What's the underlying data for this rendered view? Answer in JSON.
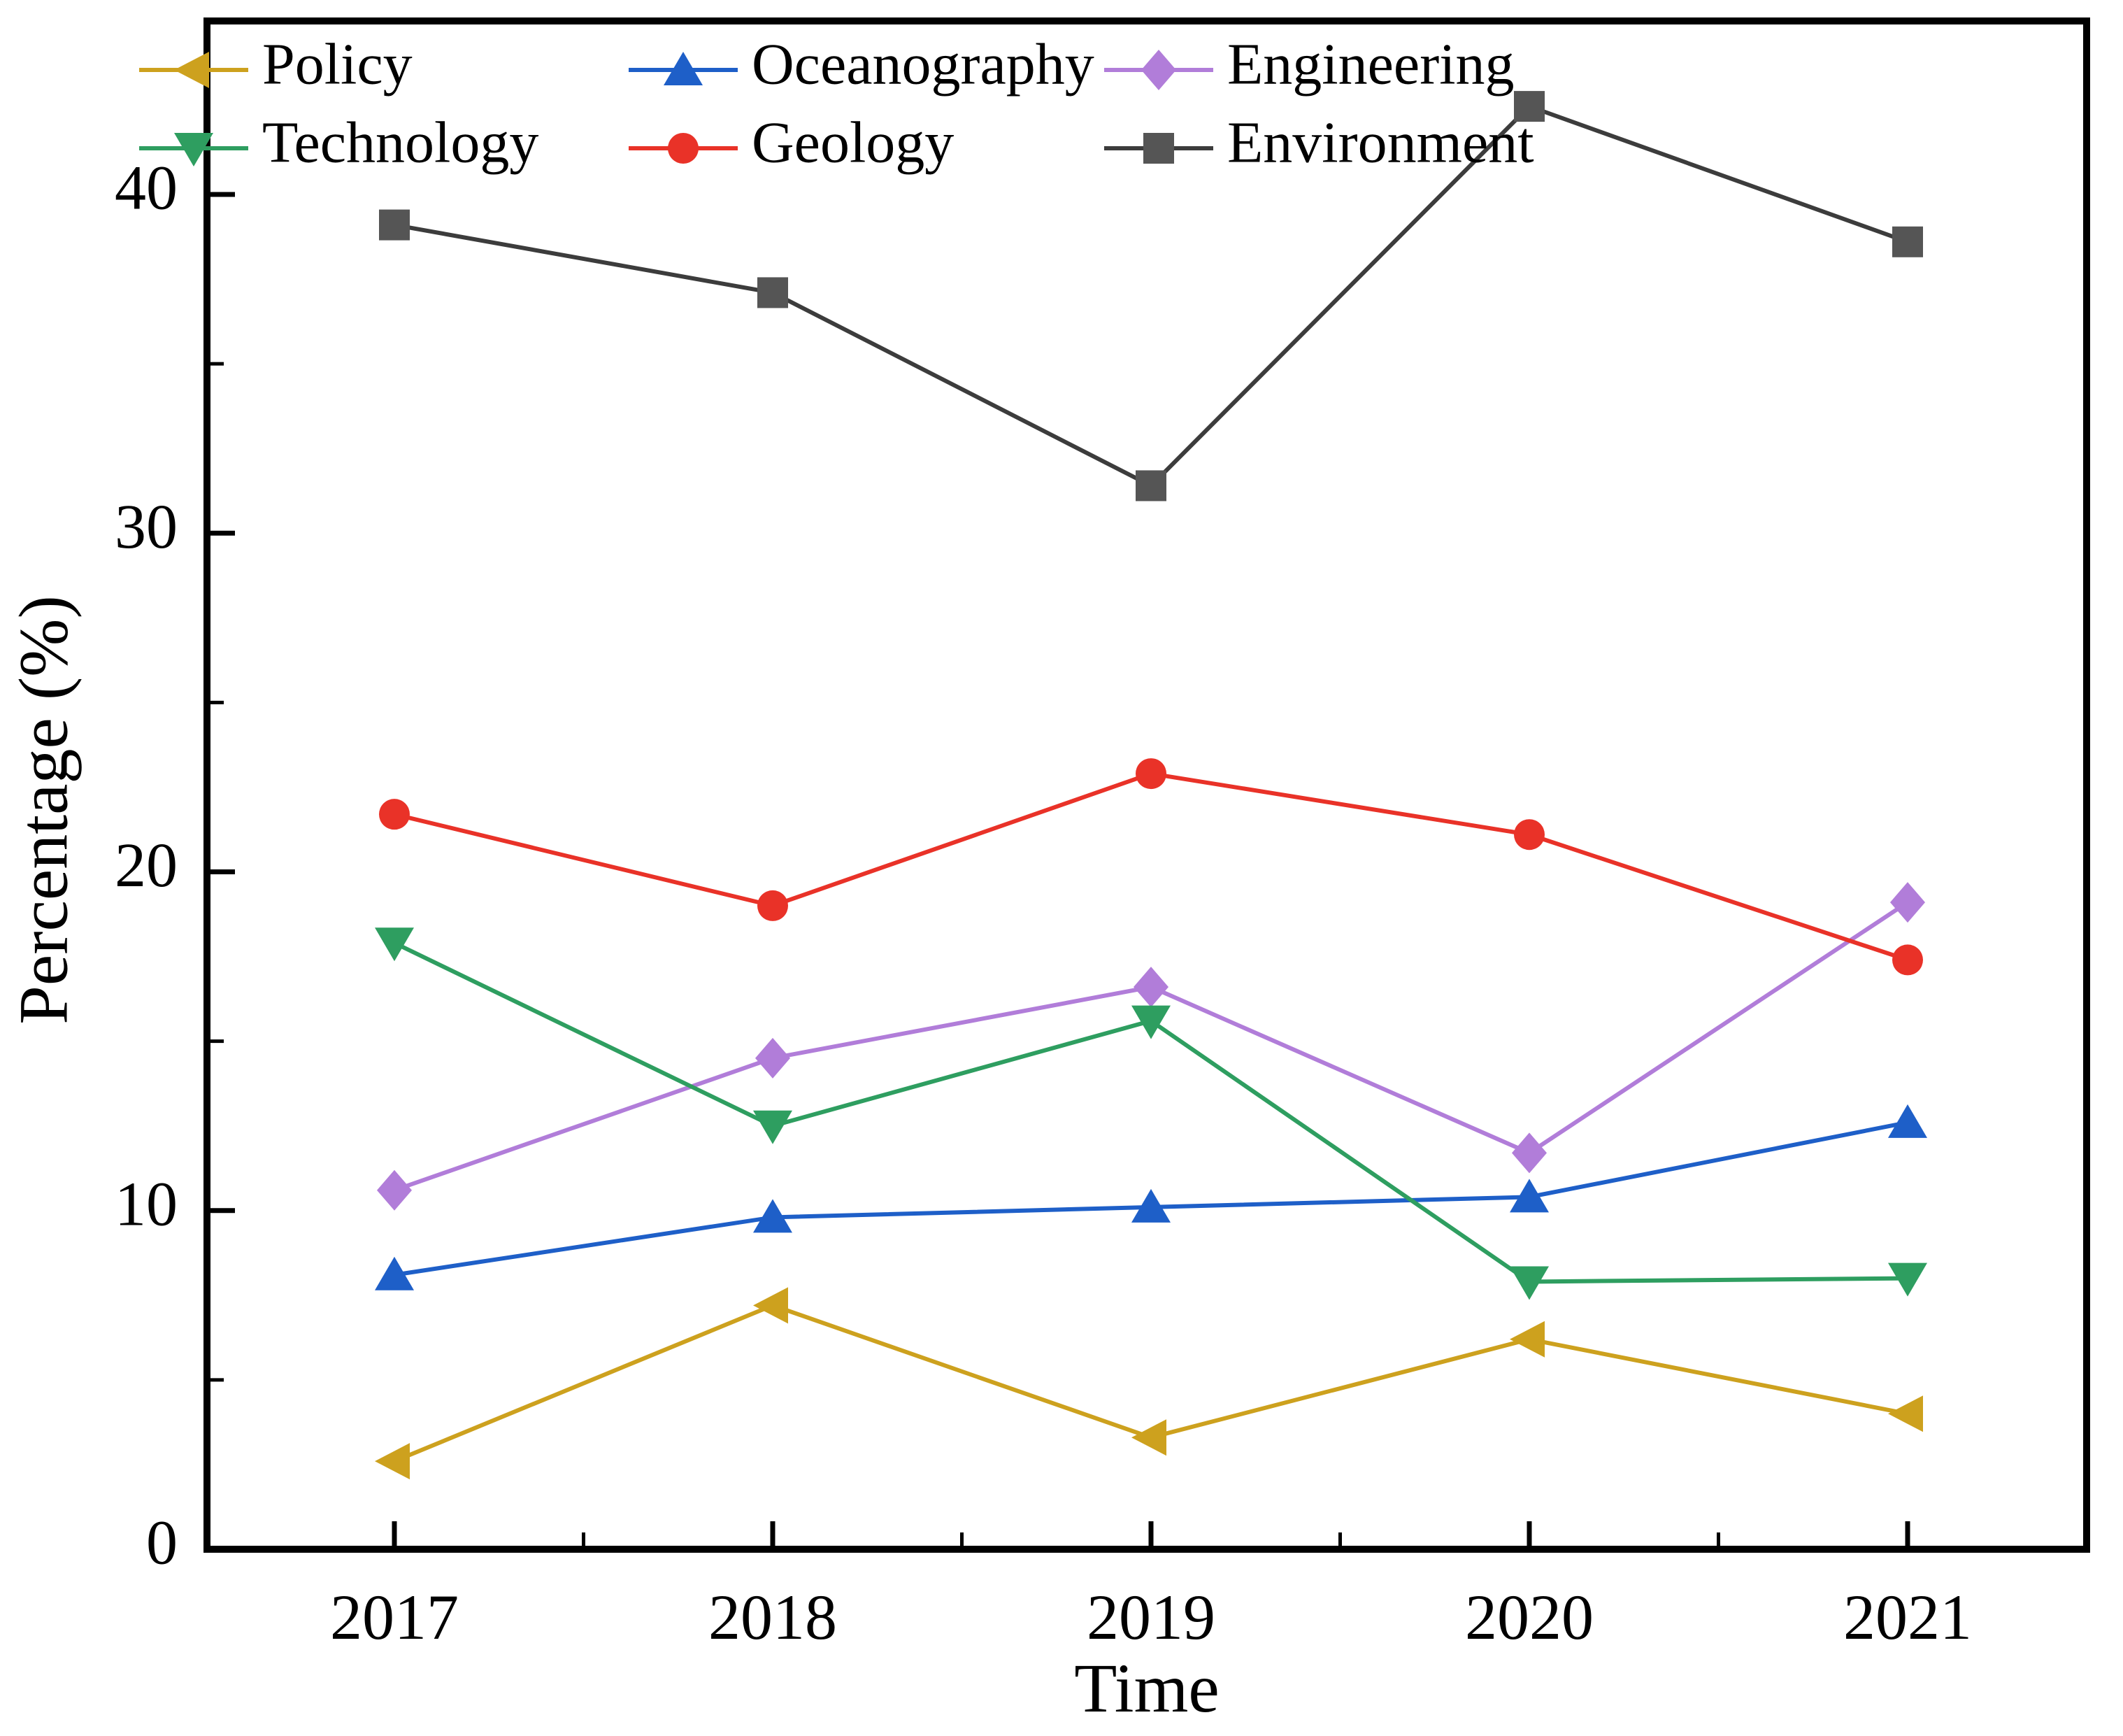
{
  "chart_data": {
    "type": "line",
    "title": "",
    "xlabel": "Time",
    "ylabel": "Percentage (%)",
    "x_categories": [
      "2017",
      "2018",
      "2019",
      "2020",
      "2021"
    ],
    "ylim": [
      0,
      45
    ],
    "y_major_ticks": [
      0,
      10,
      20,
      30,
      40
    ],
    "y_minor_ticks": [
      5,
      15,
      25,
      35,
      45
    ],
    "grid": false,
    "legend_position": "top-left, 3 columns x 2 rows, inside plot",
    "series": [
      {
        "name": "Policy",
        "color": "#CDA11E",
        "line_color": "#CDA11E",
        "marker": "triangle-left",
        "values": [
          2.6,
          7.2,
          3.3,
          6.2,
          4.0
        ]
      },
      {
        "name": "Oceanography",
        "color": "#1E5FC8",
        "line_color": "#1E5FC8",
        "marker": "triangle-up",
        "values": [
          8.1,
          9.8,
          10.1,
          10.4,
          12.6
        ]
      },
      {
        "name": "Engineering",
        "color": "#B17DD9",
        "line_color": "#B17DD9",
        "marker": "diamond",
        "values": [
          10.6,
          14.5,
          16.6,
          11.7,
          19.1
        ]
      },
      {
        "name": "Technology",
        "color": "#2E9E60",
        "line_color": "#2E9E60",
        "marker": "triangle-down",
        "values": [
          17.9,
          12.5,
          15.6,
          7.9,
          8.0
        ]
      },
      {
        "name": "Geology",
        "color": "#E93228",
        "line_color": "#E93228",
        "marker": "circle",
        "values": [
          21.7,
          19.0,
          22.9,
          21.1,
          17.4
        ]
      },
      {
        "name": "Environment",
        "color": "#555555",
        "line_color": "#3C3C3C",
        "marker": "square",
        "values": [
          39.1,
          37.1,
          31.4,
          42.6,
          38.6
        ]
      }
    ]
  }
}
